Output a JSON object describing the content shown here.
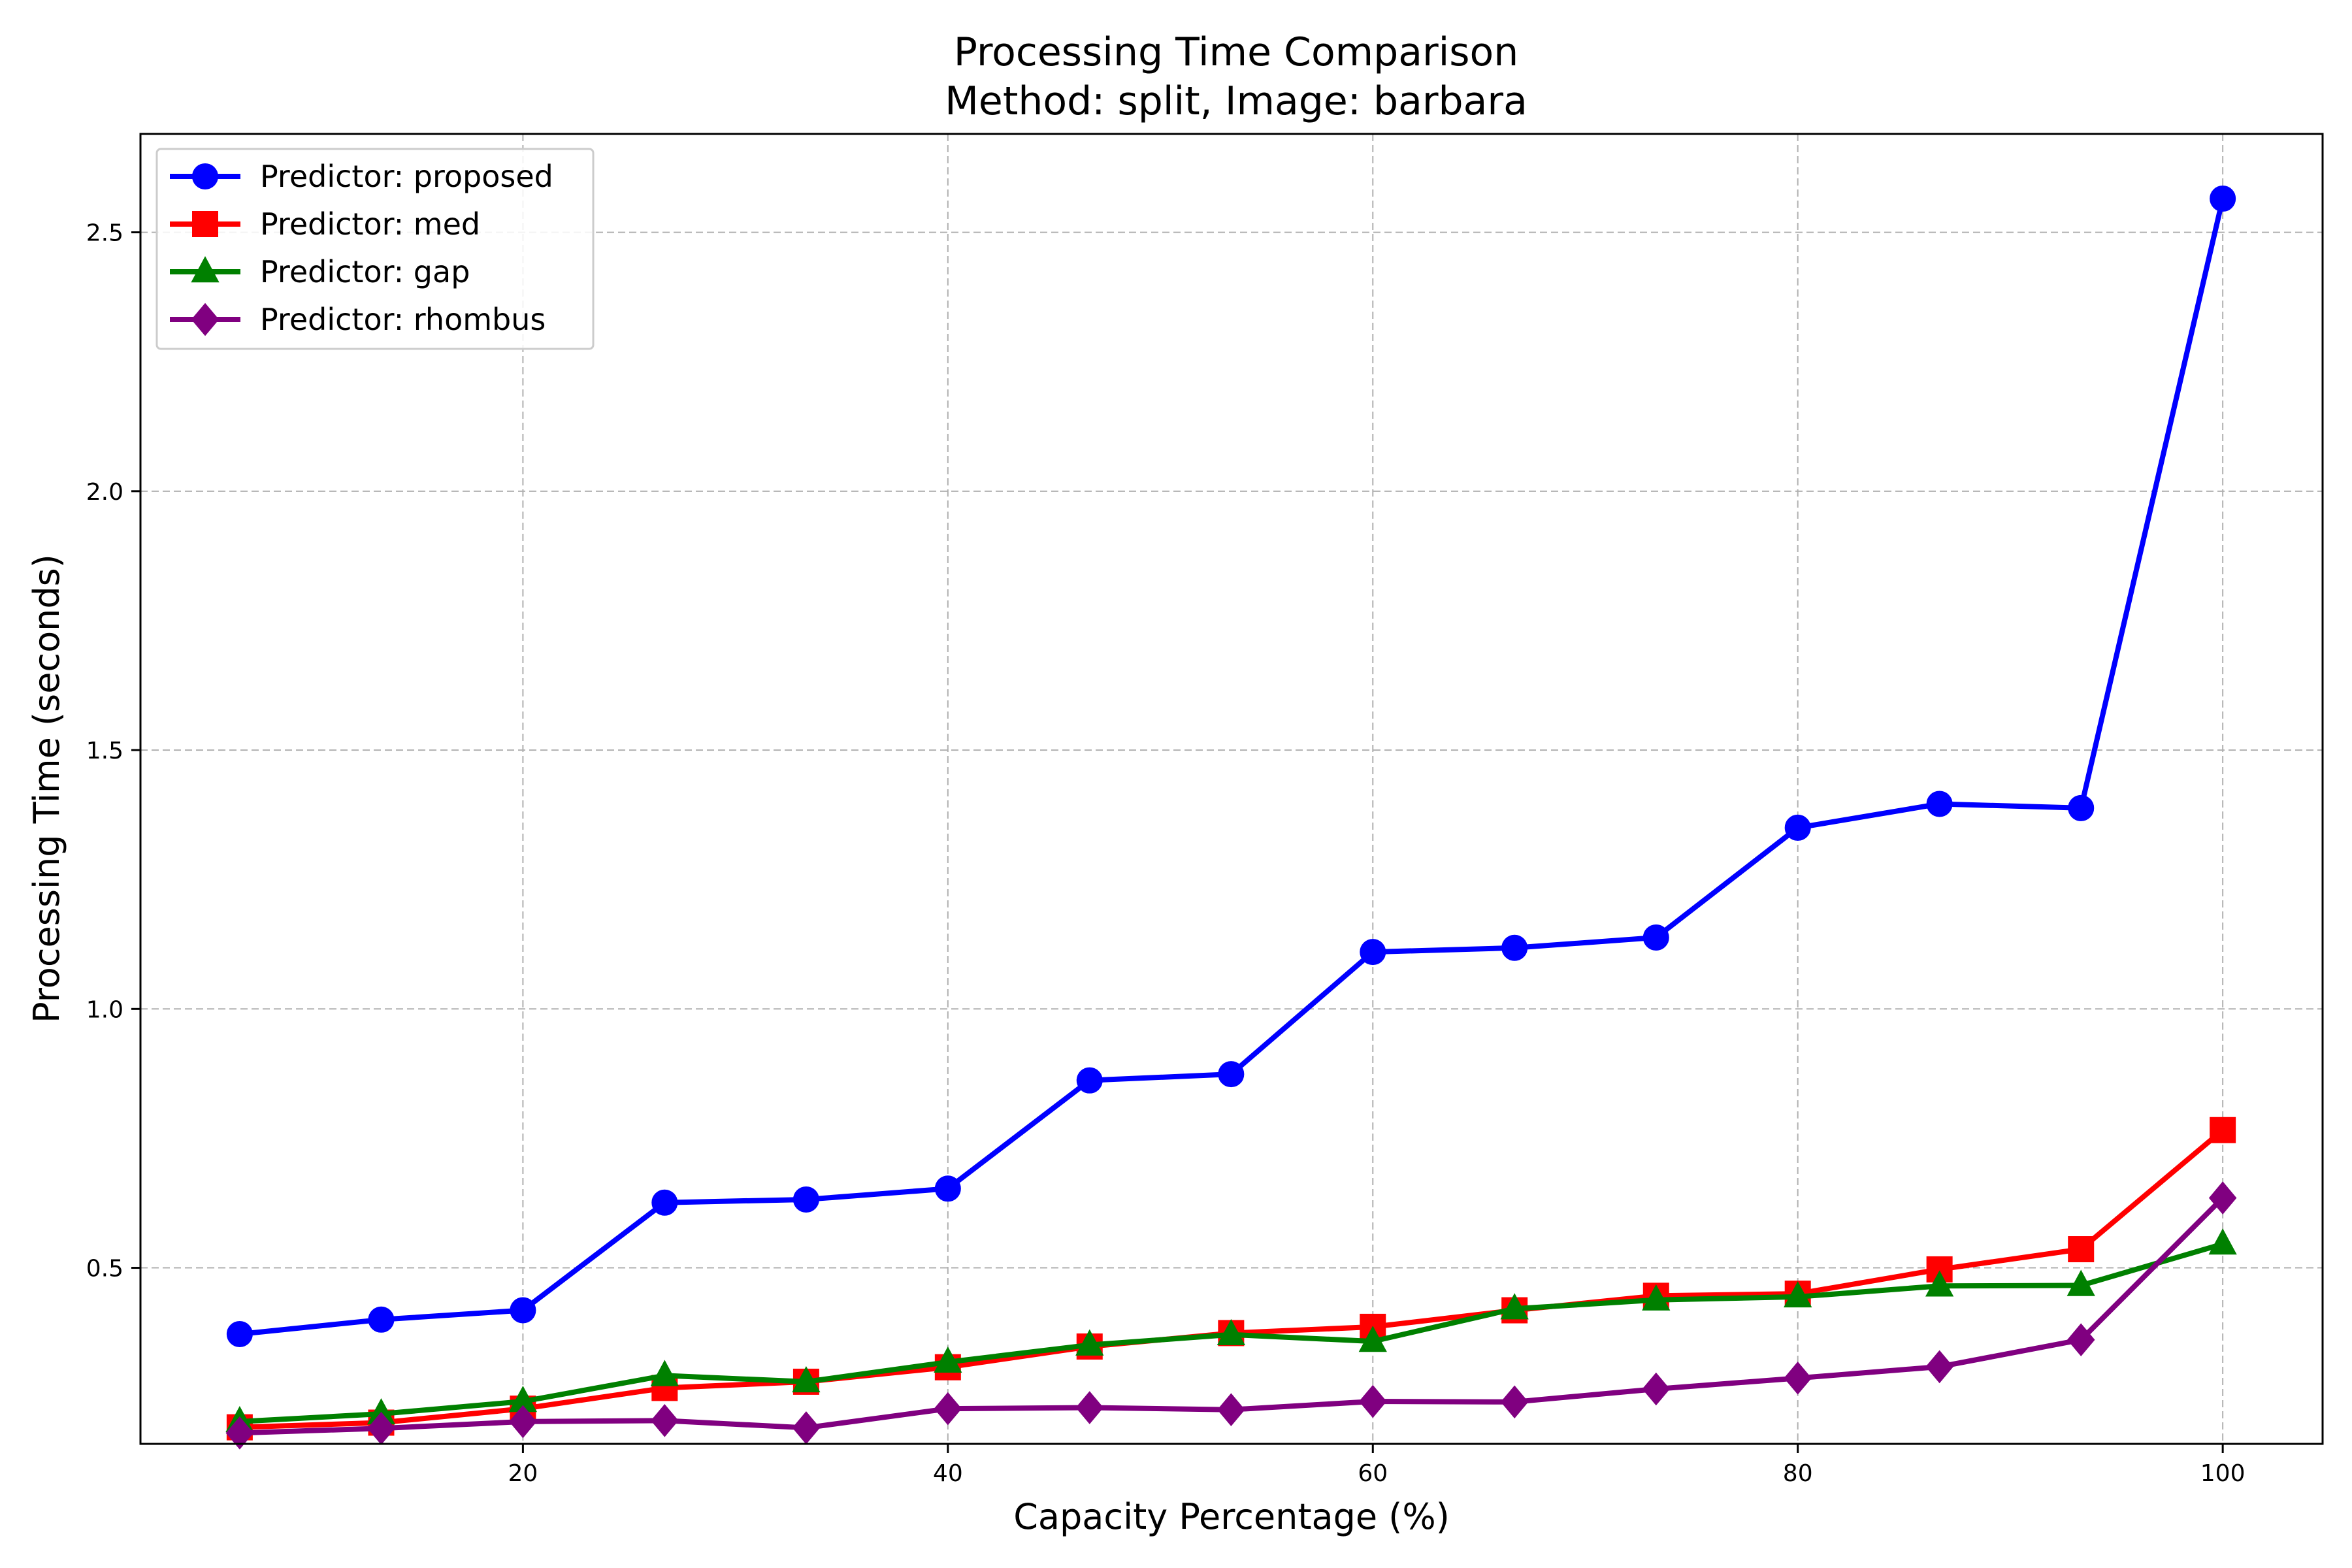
{
  "chart_data": {
    "type": "line",
    "title": "Processing Time Comparison",
    "subtitle": "Method: split, Image: barbara",
    "xlabel": "Capacity Percentage (%)",
    "ylabel": "Processing Time (seconds)",
    "xlim": [
      2,
      104.7
    ],
    "ylim": [
      0.16,
      2.69
    ],
    "xticks": [
      20,
      40,
      60,
      80,
      100
    ],
    "yticks": [
      0.5,
      1.0,
      1.5,
      2.0,
      2.5
    ],
    "xtick_labels": [
      "20",
      "40",
      "60",
      "80",
      "100"
    ],
    "ytick_labels": [
      "0.5",
      "1.0",
      "1.5",
      "2.0",
      "2.5"
    ],
    "grid": true,
    "legend_position": "top-left",
    "x": [
      6.67,
      13.33,
      20.0,
      26.67,
      33.33,
      40.0,
      46.67,
      53.33,
      60.0,
      66.67,
      73.33,
      80.0,
      86.67,
      93.33,
      100.0
    ],
    "series": [
      {
        "name": "Predictor: proposed",
        "color": "#0000ff",
        "marker": "circle",
        "values": [
          0.372,
          0.4,
          0.418,
          0.626,
          0.632,
          0.653,
          0.862,
          0.874,
          1.11,
          1.118,
          1.138,
          1.35,
          1.396,
          1.388,
          2.565
        ]
      },
      {
        "name": "Predictor: med",
        "color": "#ff0000",
        "marker": "square",
        "values": [
          0.192,
          0.201,
          0.228,
          0.268,
          0.28,
          0.308,
          0.348,
          0.374,
          0.386,
          0.418,
          0.446,
          0.45,
          0.497,
          0.536,
          0.766
        ]
      },
      {
        "name": "Predictor: gap",
        "color": "#008000",
        "marker": "triangle",
        "values": [
          0.203,
          0.218,
          0.242,
          0.292,
          0.28,
          0.318,
          0.351,
          0.371,
          0.358,
          0.421,
          0.438,
          0.444,
          0.465,
          0.466,
          0.546
        ]
      },
      {
        "name": "Predictor: rhombus",
        "color": "#800080",
        "marker": "diamond",
        "values": [
          0.181,
          0.19,
          0.203,
          0.205,
          0.191,
          0.228,
          0.23,
          0.226,
          0.242,
          0.241,
          0.266,
          0.287,
          0.309,
          0.361,
          0.635
        ]
      }
    ]
  }
}
